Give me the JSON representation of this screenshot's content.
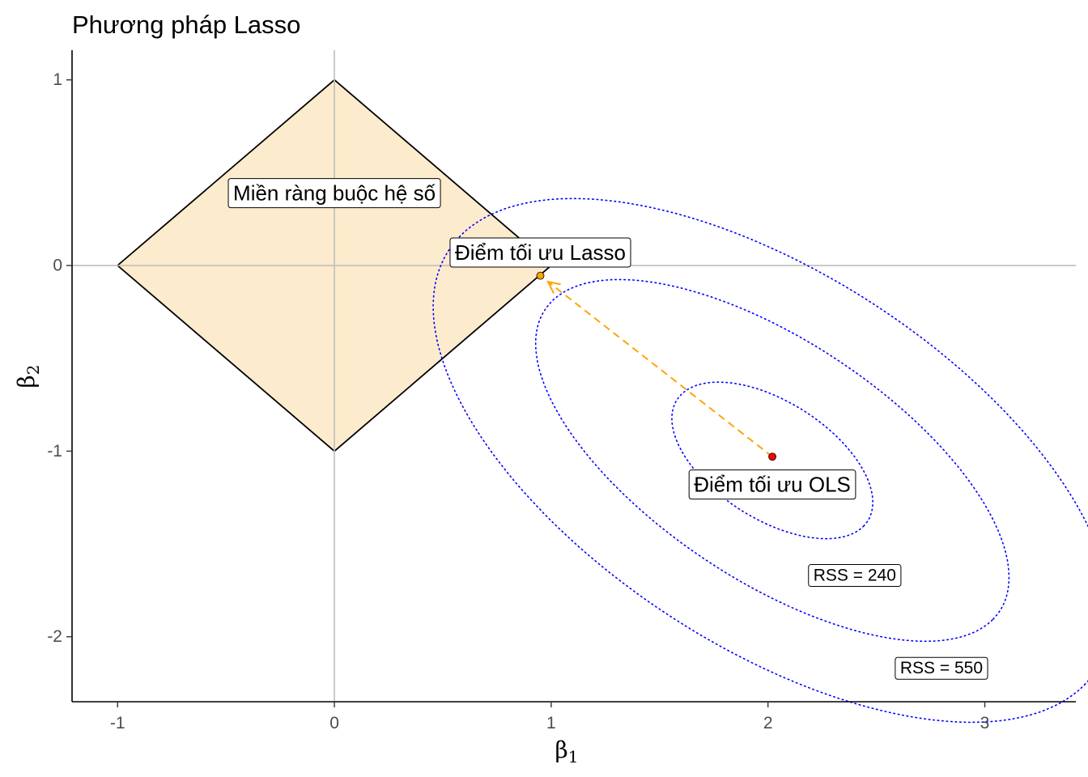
{
  "chart_data": {
    "type": "line",
    "title": "Phương pháp Lasso",
    "xlabel": "β",
    "xlabel_sub": "1",
    "ylabel": "β",
    "ylabel_sub": "2",
    "xlim": [
      -1.21,
      3.42
    ],
    "ylim": [
      -2.35,
      1.16
    ],
    "x_ticks": [
      -1,
      0,
      1,
      2,
      3
    ],
    "y_ticks": [
      -2,
      -1,
      0,
      1
    ],
    "x_tick_labels": [
      "-1",
      "0",
      "1",
      "2",
      "3"
    ],
    "y_tick_labels": [
      "-2",
      "-1",
      "0",
      "1"
    ],
    "reference_lines": {
      "x": 0,
      "y": 0
    },
    "grid": false,
    "constraint_region": {
      "label": "Miền ràng buộc hệ số",
      "vertices": [
        [
          1,
          0
        ],
        [
          0,
          1
        ],
        [
          -1,
          0
        ],
        [
          0,
          -1
        ]
      ],
      "fill": "#FDEBCD",
      "stroke": "#000000"
    },
    "contours": [
      {
        "name": "inner",
        "center": [
          2.02,
          -1.05
        ],
        "semi_axes": [
          0.55,
          0.3
        ],
        "angle_deg": -40,
        "label": "",
        "color": "#0000FF"
      },
      {
        "name": "middle",
        "center": [
          2.02,
          -1.05
        ],
        "semi_axes": [
          1.33,
          0.61
        ],
        "angle_deg": -40,
        "label": "RSS = 240",
        "label_pos": [
          2.4,
          -1.67
        ],
        "color": "#0000FF"
      },
      {
        "name": "outer",
        "center": [
          2.02,
          -1.05
        ],
        "semi_axes": [
          1.88,
          0.95
        ],
        "angle_deg": -40,
        "label": "RSS = 550",
        "label_pos": [
          2.8,
          -2.17
        ],
        "color": "#0000FF"
      }
    ],
    "points": [
      {
        "name": "ols",
        "x": 2.02,
        "y": -1.03,
        "color": "#FF0000",
        "label": "Điểm tối ưu OLS",
        "label_pos": [
          2.02,
          -1.18
        ]
      },
      {
        "name": "lasso",
        "x": 0.95,
        "y": -0.055,
        "color": "#FFA500",
        "label": "Điểm tối ưu Lasso",
        "label_pos": [
          0.95,
          0.07
        ]
      }
    ],
    "arrow": {
      "from": [
        2.02,
        -1.03
      ],
      "to": [
        0.95,
        -0.055
      ],
      "color": "#FFA500",
      "style": "dashed"
    }
  }
}
